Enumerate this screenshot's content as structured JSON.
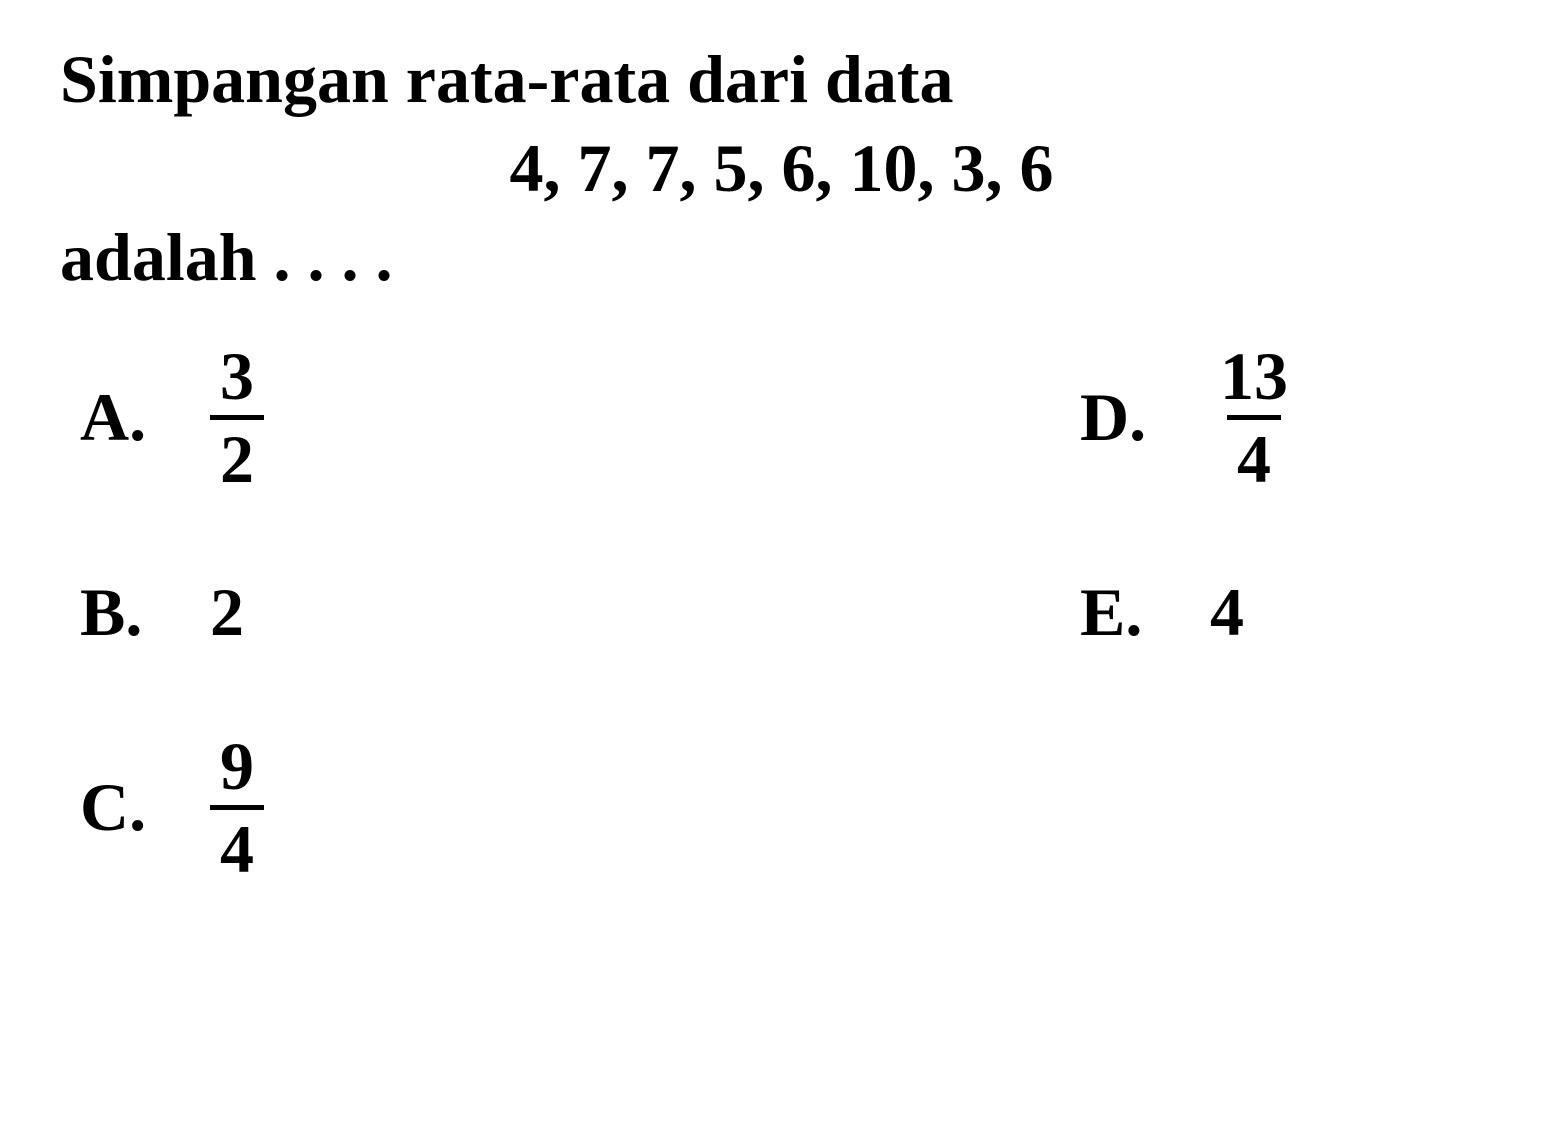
{
  "question": {
    "line1": "Simpangan rata-rata dari data",
    "line2": "4, 7, 7, 5, 6, 10, 3, 6",
    "line3": "adalah . . . ."
  },
  "options": {
    "a": {
      "letter": "A.",
      "type": "fraction",
      "numerator": "3",
      "denominator": "2"
    },
    "b": {
      "letter": "B.",
      "type": "whole",
      "value": "2"
    },
    "c": {
      "letter": "C.",
      "type": "fraction",
      "numerator": "9",
      "denominator": "4"
    },
    "d": {
      "letter": "D.",
      "type": "fraction",
      "numerator": "13",
      "denominator": "4"
    },
    "e": {
      "letter": "E.",
      "type": "whole",
      "value": "4"
    }
  },
  "styling": {
    "background_color": "#ffffff",
    "text_color": "#000000",
    "font_family": "Times New Roman",
    "font_size_pt": 51,
    "font_weight": "bold",
    "fraction_bar_width": 5
  }
}
